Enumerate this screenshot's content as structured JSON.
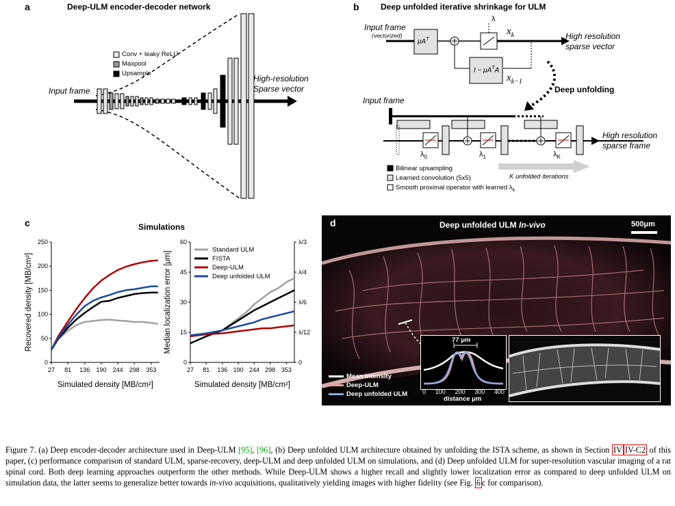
{
  "panel_a": {
    "letter": "a",
    "title": "Deep-ULM encoder-decoder network",
    "legend": [
      "Conv + leaky ReLU",
      "Maxpool",
      "Upsample"
    ],
    "input_label": "Input frame",
    "output_label_1": "High-resolution",
    "output_label_2": "Sparse vector"
  },
  "panel_b": {
    "letter": "b",
    "title": "Deep unfolded iterative shrinkage for ULM",
    "input_label": "Input frame",
    "input_sub": "(vectorized)",
    "mu_block": "μA",
    "mu_sup": "T",
    "lambda": "λ",
    "xk": "x",
    "xk_sub": "k",
    "xk1_sub": "k−1",
    "feedback_block": "I − μA",
    "output_1": "High resolution",
    "output_2": "sparse vector",
    "unfold_label": "Deep unfolding",
    "input_label_2": "Input frame",
    "lambda0": "λ",
    "lambda0_sub": "0",
    "lambda1_sub": "1",
    "lambdaK_sub": "K",
    "output_3": "High resolution",
    "output_4": "sparse frame",
    "legend": [
      "Bilinear upsampling",
      "Learned convolution (5x5)",
      "Smooth proximal operator with learned λ"
    ],
    "legend_sub": "k",
    "iterations": "K unfolded iterations"
  },
  "panel_c": {
    "letter": "c",
    "title": "Simulations"
  },
  "panel_d": {
    "letter": "d",
    "title": "Deep unfolded ULM ",
    "title_italic": "In-vivo",
    "scalebar": "500μm",
    "inset_measure": "77 μm",
    "inset_xlabel": "distance μm",
    "inset_ticks": [
      "0",
      "100",
      "200",
      "300",
      "400"
    ],
    "legend": [
      "Mean intensity",
      "Deep-ULM",
      "Deep unfolded ULM"
    ],
    "colors": {
      "mean": "#ffffff",
      "deep_ulm": "#e8a09a",
      "unfolded": "#8ea6e0"
    }
  },
  "chart_data": [
    {
      "type": "line",
      "title": "Simulations",
      "xlabel": "Simulated density [MB/cm²]",
      "ylabel": "Recovered density [MB/cm²]",
      "x": [
        27,
        81,
        136,
        190,
        244,
        298,
        353
      ],
      "xlim": [
        27,
        380
      ],
      "ylim": [
        0,
        250
      ],
      "yticks": [
        0,
        50,
        100,
        150,
        200,
        250
      ],
      "series": [
        {
          "name": "Standard ULM",
          "color": "#a0a0a0",
          "x": [
            27,
            50,
            81,
            110,
            136,
            163,
            190,
            217,
            244,
            271,
            298,
            325,
            353,
            375
          ],
          "values": [
            26,
            48,
            66,
            78,
            84,
            86,
            88,
            89,
            87,
            86,
            84,
            84,
            82,
            80
          ]
        },
        {
          "name": "FISTA",
          "color": "#000000",
          "x": [
            27,
            50,
            81,
            110,
            136,
            163,
            190,
            217,
            244,
            271,
            298,
            325,
            353,
            375
          ],
          "values": [
            26,
            50,
            72,
            90,
            103,
            115,
            126,
            128,
            134,
            138,
            142,
            144,
            145,
            145
          ]
        },
        {
          "name": "Deep-ULM",
          "color": "#b00000",
          "x": [
            27,
            50,
            81,
            110,
            136,
            163,
            190,
            217,
            244,
            271,
            298,
            325,
            353,
            375
          ],
          "values": [
            26,
            55,
            85,
            112,
            134,
            154,
            170,
            182,
            192,
            199,
            204,
            208,
            211,
            212
          ]
        },
        {
          "name": "Deep unfolded ULM",
          "color": "#1a4aa0",
          "x": [
            27,
            50,
            81,
            110,
            136,
            163,
            190,
            217,
            244,
            271,
            298,
            325,
            353,
            375
          ],
          "values": [
            26,
            52,
            78,
            100,
            117,
            128,
            135,
            140,
            146,
            150,
            152,
            155,
            158,
            158
          ]
        }
      ]
    },
    {
      "type": "line",
      "xlabel": "Simulated density [MB/cm²]",
      "ylabel": "Median localization error [μm]",
      "x": [
        27,
        81,
        136,
        190,
        244,
        298,
        353
      ],
      "xlim": [
        27,
        380
      ],
      "ylim": [
        0,
        60
      ],
      "yticks": [
        0,
        15,
        30,
        45,
        60
      ],
      "y2ticks": [
        "λ/3",
        "λ/4",
        "λ/6",
        "λ/12",
        "0"
      ],
      "legend": [
        "Standard ULM",
        "FISTA",
        "Deep-ULM",
        "Deep unfolded ULM"
      ],
      "series": [
        {
          "name": "Standard ULM",
          "color": "#a0a0a0",
          "x": [
            27,
            81,
            136,
            163,
            190,
            217,
            244,
            271,
            298,
            325,
            353,
            380
          ],
          "values": [
            13,
            14.5,
            16,
            19,
            22,
            25,
            29,
            32,
            35,
            37,
            40,
            42
          ]
        },
        {
          "name": "FISTA",
          "color": "#000000",
          "x": [
            27,
            81,
            136,
            163,
            190,
            217,
            244,
            271,
            298,
            325,
            353,
            380
          ],
          "values": [
            9.5,
            13,
            16,
            18.5,
            21,
            23.5,
            26,
            28,
            30,
            32,
            34,
            36
          ]
        },
        {
          "name": "Deep-ULM",
          "color": "#b00000",
          "x": [
            27,
            81,
            136,
            163,
            190,
            217,
            244,
            271,
            298,
            325,
            353,
            380
          ],
          "values": [
            13,
            14,
            14.5,
            15,
            15.5,
            16,
            16.5,
            17,
            17,
            17.5,
            18,
            18.5
          ]
        },
        {
          "name": "Deep unfolded ULM",
          "color": "#1a4aa0",
          "x": [
            27,
            81,
            136,
            163,
            190,
            217,
            244,
            271,
            298,
            325,
            353,
            380
          ],
          "values": [
            13.5,
            14.5,
            16,
            17,
            18,
            19,
            20,
            21.5,
            22.5,
            23.5,
            24.5,
            25.5
          ]
        }
      ]
    }
  ],
  "caption": {
    "p1": "Figure 7.  (a) Deep encoder-decoder architecture used in Deep-ULM ",
    "r1": "[95]",
    "c1": ", ",
    "r2": "[96]",
    "p2": ", (b) Deep unfolded ULM architecture obtained by unfolding the ISTA scheme, as shown in Section ",
    "s1": "IV",
    "s2": "IV-C2",
    "p3": " of this paper, (c) performance comparison of standard ULM, sparse-recovery, deep-ULM and deep unfolded ULM on simulations, and (d) Deep unfolded ULM for super-resolution vascular imaging of a rat spinal cord. Both deep learning approaches outperform the other methods. While Deep-ULM shows a higher recall and slightly lower localization error as compared to deep unfolded ULM on simulation data, the latter seems to generalize better towards ",
    "p4": "in-vivo",
    "p5": " acquisitions, qualitatively yielding images with higher fidelity (see Fig. ",
    "s3": "6",
    "p6": "c for comparison)."
  }
}
